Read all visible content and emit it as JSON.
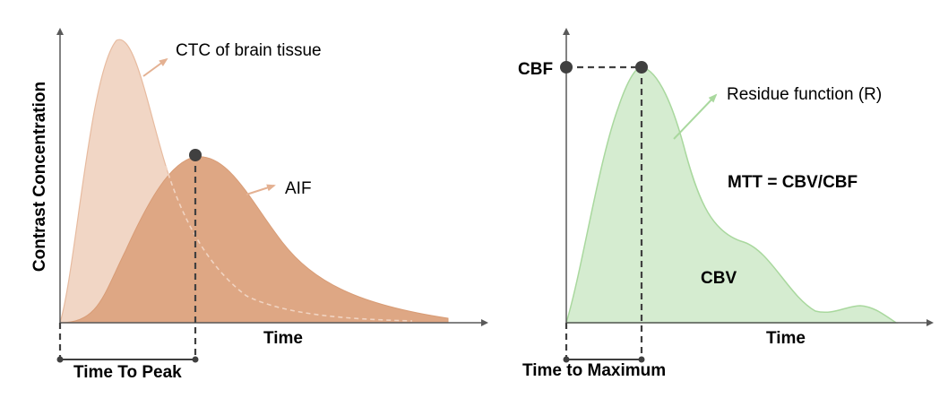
{
  "left_panel": {
    "y_axis_label": "Contrast Concentration",
    "x_axis_label": "Time",
    "ctc_label": "CTC of brain tissue",
    "aif_label": "AIF",
    "bracket_label": "Time To Peak",
    "colors": {
      "ctc_fill": "#f1d4c2",
      "ctc_stroke": "#e6b89b",
      "aif_fill": "#dea784",
      "arrow": "#e4b192"
    }
  },
  "right_panel": {
    "cbf_label": "CBF",
    "residue_label": "Residue function (R)",
    "mtt_label": "MTT = CBV/CBF",
    "cbv_label": "CBV",
    "x_axis_label": "Time",
    "bracket_label": "Time to Maximum",
    "colors": {
      "curve_fill": "#d5ecd0",
      "curve_stroke": "#a9d89e",
      "arrow": "#a9d89e"
    }
  },
  "axis_color": "#595959",
  "marker_color": "#404040"
}
